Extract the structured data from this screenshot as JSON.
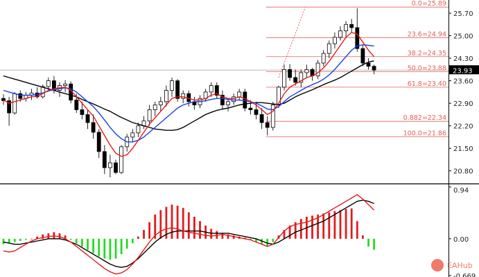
{
  "chart_data": [
    {
      "type": "candlestick",
      "panel": "price",
      "y_ticks": [
        "25.70",
        "25.00",
        "24.30",
        "23.60",
        "22.90",
        "22.20",
        "21.50",
        "20.80"
      ],
      "ylim": [
        20.45,
        25.98
      ],
      "last_price_label": "23.93",
      "last_price": 23.93,
      "colors": {
        "up": "#ffffff",
        "down": "#000000",
        "wick": "#222222",
        "sma_slow": "#000000",
        "ema_fast": "#e41a1a",
        "ema_mid": "#1a3ee4",
        "fib": "#e85c5c"
      },
      "candles": [
        [
          23.05,
          23.18,
          22.85,
          22.98
        ],
        [
          22.98,
          23.1,
          22.2,
          22.6
        ],
        [
          22.6,
          23.25,
          22.55,
          23.2
        ],
        [
          23.2,
          23.3,
          22.95,
          23.05
        ],
        [
          23.05,
          23.25,
          22.95,
          23.15
        ],
        [
          23.15,
          23.35,
          23.0,
          23.22
        ],
        [
          23.22,
          23.4,
          23.05,
          23.1
        ],
        [
          23.1,
          23.48,
          23.05,
          23.42
        ],
        [
          23.42,
          23.7,
          23.3,
          23.6
        ],
        [
          23.6,
          23.75,
          23.2,
          23.3
        ],
        [
          23.3,
          23.55,
          23.1,
          23.45
        ],
        [
          23.45,
          23.62,
          23.25,
          23.5
        ],
        [
          23.5,
          23.58,
          22.9,
          23.0
        ],
        [
          23.0,
          23.2,
          22.6,
          22.7
        ],
        [
          22.7,
          22.95,
          22.4,
          22.55
        ],
        [
          22.55,
          22.7,
          22.1,
          22.3
        ],
        [
          22.3,
          22.55,
          21.8,
          22.0
        ],
        [
          22.0,
          22.1,
          21.2,
          21.4
        ],
        [
          21.4,
          21.6,
          20.7,
          20.9
        ],
        [
          20.9,
          21.3,
          20.6,
          21.05
        ],
        [
          21.05,
          21.15,
          20.7,
          20.75
        ],
        [
          20.75,
          21.6,
          20.7,
          21.55
        ],
        [
          21.55,
          21.95,
          21.4,
          21.85
        ],
        [
          21.85,
          22.1,
          21.7,
          21.98
        ],
        [
          21.98,
          22.3,
          21.85,
          22.2
        ],
        [
          22.2,
          22.5,
          22.1,
          22.35
        ],
        [
          22.35,
          22.85,
          22.2,
          22.7
        ],
        [
          22.7,
          22.95,
          22.5,
          22.85
        ],
        [
          22.85,
          23.1,
          22.65,
          22.95
        ],
        [
          22.95,
          23.45,
          22.8,
          23.3
        ],
        [
          23.3,
          23.7,
          23.1,
          23.6
        ],
        [
          23.6,
          23.65,
          22.95,
          23.05
        ],
        [
          23.05,
          23.3,
          22.9,
          23.2
        ],
        [
          23.2,
          23.3,
          22.8,
          22.95
        ],
        [
          22.95,
          23.1,
          22.7,
          22.85
        ],
        [
          22.85,
          23.15,
          22.75,
          23.05
        ],
        [
          23.05,
          23.35,
          22.95,
          23.25
        ],
        [
          23.25,
          23.55,
          23.1,
          23.45
        ],
        [
          23.45,
          23.55,
          23.05,
          23.15
        ],
        [
          23.15,
          23.3,
          22.7,
          22.85
        ],
        [
          22.85,
          23.05,
          22.65,
          22.95
        ],
        [
          22.95,
          23.2,
          22.85,
          23.1
        ],
        [
          23.1,
          23.35,
          23.0,
          23.25
        ],
        [
          23.25,
          23.35,
          22.65,
          22.75
        ],
        [
          22.75,
          23.0,
          22.55,
          22.7
        ],
        [
          22.7,
          22.95,
          22.4,
          22.55
        ],
        [
          22.55,
          22.75,
          22.1,
          22.3
        ],
        [
          22.3,
          22.5,
          21.9,
          22.15
        ],
        [
          22.15,
          22.95,
          22.05,
          22.85
        ],
        [
          22.85,
          23.45,
          22.75,
          23.4
        ],
        [
          23.4,
          24.1,
          23.3,
          23.95
        ],
        [
          23.95,
          24.12,
          23.6,
          23.7
        ],
        [
          23.7,
          23.95,
          23.45,
          23.55
        ],
        [
          23.55,
          23.95,
          23.4,
          23.85
        ],
        [
          23.85,
          24.1,
          23.7,
          23.95
        ],
        [
          23.95,
          24.0,
          23.6,
          23.75
        ],
        [
          23.75,
          24.25,
          23.65,
          24.15
        ],
        [
          24.15,
          24.55,
          24.05,
          24.45
        ],
        [
          24.45,
          24.85,
          24.3,
          24.75
        ],
        [
          24.75,
          25.1,
          24.6,
          24.95
        ],
        [
          24.95,
          25.3,
          24.85,
          25.15
        ],
        [
          25.15,
          25.45,
          24.95,
          25.35
        ],
        [
          25.35,
          25.52,
          25.1,
          25.25
        ],
        [
          25.25,
          25.85,
          24.5,
          24.6
        ],
        [
          24.6,
          24.7,
          24.05,
          24.15
        ],
        [
          24.15,
          24.3,
          23.95,
          24.05
        ],
        [
          24.05,
          24.1,
          23.8,
          23.93
        ]
      ],
      "indicators": {
        "sma_slow": [
          23.75,
          23.7,
          23.65,
          23.6,
          23.55,
          23.5,
          23.45,
          23.4,
          23.35,
          23.3,
          23.25,
          23.2,
          23.15,
          23.1,
          23.02,
          22.95,
          22.88,
          22.8,
          22.72,
          22.65,
          22.55,
          22.46,
          22.38,
          22.3,
          22.25,
          22.2,
          22.15,
          22.1,
          22.08,
          22.06,
          22.06,
          22.08,
          22.15,
          22.25,
          22.35,
          22.45,
          22.55,
          22.62,
          22.68,
          22.72,
          22.75,
          22.8,
          22.85,
          22.88,
          22.9,
          22.92,
          22.92,
          22.9,
          22.88,
          22.86,
          22.9,
          23.0,
          23.1,
          23.18,
          23.25,
          23.32,
          23.4,
          23.48,
          23.55,
          23.62,
          23.7,
          23.8,
          23.9,
          24.0,
          24.1,
          24.18,
          24.22
        ],
        "ema_fast": [
          23.0,
          22.9,
          22.95,
          23.0,
          23.05,
          23.1,
          23.12,
          23.2,
          23.3,
          23.35,
          23.38,
          23.4,
          23.3,
          23.1,
          22.9,
          22.7,
          22.5,
          22.2,
          21.9,
          21.6,
          21.35,
          21.25,
          21.3,
          21.5,
          21.75,
          22.0,
          22.25,
          22.45,
          22.65,
          22.85,
          23.05,
          23.1,
          23.1,
          23.05,
          23.0,
          23.0,
          23.05,
          23.15,
          23.2,
          23.1,
          23.05,
          23.05,
          23.1,
          23.05,
          22.95,
          22.85,
          22.7,
          22.55,
          22.65,
          22.9,
          23.2,
          23.4,
          23.5,
          23.6,
          23.7,
          23.75,
          23.85,
          24.0,
          24.2,
          24.45,
          24.7,
          24.95,
          25.1,
          25.05,
          24.8,
          24.55,
          24.35
        ],
        "ema_mid": [
          23.3,
          23.25,
          23.2,
          23.15,
          23.15,
          23.15,
          23.18,
          23.22,
          23.28,
          23.32,
          23.35,
          23.38,
          23.35,
          23.25,
          23.1,
          22.95,
          22.8,
          22.6,
          22.38,
          22.15,
          21.95,
          21.8,
          21.7,
          21.7,
          21.75,
          21.85,
          22.0,
          22.15,
          22.3,
          22.45,
          22.6,
          22.75,
          22.85,
          22.9,
          22.95,
          22.95,
          22.98,
          23.02,
          23.05,
          23.05,
          23.02,
          23.0,
          23.0,
          22.98,
          22.95,
          22.9,
          22.82,
          22.72,
          22.7,
          22.8,
          22.95,
          23.1,
          23.2,
          23.3,
          23.4,
          23.48,
          23.55,
          23.65,
          23.78,
          23.95,
          24.15,
          24.35,
          24.55,
          24.68,
          24.72,
          24.7,
          24.68
        ]
      },
      "horizontal_line": 23.93,
      "fib_levels": [
        {
          "label": "0.0=25.89",
          "value": 25.89
        },
        {
          "label": "23.6=24.94",
          "value": 24.94
        },
        {
          "label": "38.2=24.35",
          "value": 24.35
        },
        {
          "label": "50.0=23.88",
          "value": 23.88
        },
        {
          "label": "61.8=23.40",
          "value": 23.4
        },
        {
          "label": "0.882=22.34",
          "value": 22.34
        },
        {
          "label": "100.0=21.86",
          "value": 21.86
        }
      ],
      "fib_trend_line": {
        "from_index": 49,
        "from_value": 23.7,
        "to_index": 56,
        "to_value": 25.89
      }
    },
    {
      "type": "bar",
      "panel": "oscillator",
      "y_ticks": [
        "0.94",
        "0.00",
        "-0.669"
      ],
      "ylim": [
        -0.669,
        0.94
      ],
      "colors": {
        "positive": "#e41a1a",
        "negative": "#22dd22",
        "signal_fast": "#e41a1a",
        "signal_slow": "#000000"
      },
      "histogram": [
        -0.1,
        -0.08,
        -0.06,
        -0.04,
        -0.02,
        0.0,
        0.04,
        0.08,
        0.1,
        0.12,
        0.1,
        0.06,
        -0.02,
        -0.08,
        -0.14,
        -0.2,
        -0.26,
        -0.32,
        -0.36,
        -0.38,
        -0.36,
        -0.28,
        -0.18,
        -0.08,
        0.04,
        0.16,
        0.3,
        0.44,
        0.52,
        0.58,
        0.62,
        0.6,
        0.56,
        0.48,
        0.4,
        0.32,
        0.24,
        0.18,
        0.14,
        0.1,
        0.08,
        0.06,
        0.04,
        0.02,
        -0.02,
        -0.06,
        -0.1,
        -0.14,
        -0.06,
        0.06,
        0.16,
        0.24,
        0.3,
        0.36,
        0.4,
        0.42,
        0.44,
        0.46,
        0.48,
        0.5,
        0.52,
        0.54,
        0.55,
        0.32,
        0.06,
        -0.14,
        -0.2
      ],
      "line_fast": [
        -0.22,
        -0.24,
        -0.22,
        -0.16,
        -0.1,
        -0.04,
        0.0,
        0.02,
        0.04,
        0.05,
        0.04,
        0.0,
        -0.06,
        -0.14,
        -0.22,
        -0.3,
        -0.38,
        -0.46,
        -0.54,
        -0.6,
        -0.64,
        -0.62,
        -0.56,
        -0.46,
        -0.34,
        -0.2,
        -0.06,
        0.06,
        0.14,
        0.18,
        0.2,
        0.18,
        0.14,
        0.12,
        0.1,
        0.08,
        0.06,
        0.05,
        0.06,
        0.08,
        0.06,
        0.04,
        0.02,
        0.0,
        -0.02,
        -0.06,
        -0.1,
        -0.14,
        -0.1,
        0.02,
        0.14,
        0.22,
        0.26,
        0.28,
        0.3,
        0.34,
        0.38,
        0.44,
        0.5,
        0.56,
        0.62,
        0.68,
        0.74,
        0.8,
        0.72,
        0.62,
        0.52
      ],
      "line_slow": [
        -0.06,
        -0.08,
        -0.1,
        -0.1,
        -0.08,
        -0.06,
        -0.04,
        -0.02,
        0.0,
        0.0,
        0.0,
        -0.02,
        -0.06,
        -0.1,
        -0.16,
        -0.22,
        -0.28,
        -0.34,
        -0.4,
        -0.46,
        -0.5,
        -0.52,
        -0.5,
        -0.44,
        -0.36,
        -0.26,
        -0.16,
        -0.06,
        0.02,
        0.08,
        0.12,
        0.14,
        0.14,
        0.14,
        0.14,
        0.14,
        0.12,
        0.1,
        0.1,
        0.1,
        0.1,
        0.08,
        0.06,
        0.04,
        0.02,
        0.0,
        -0.04,
        -0.08,
        -0.1,
        -0.06,
        0.0,
        0.06,
        0.12,
        0.16,
        0.2,
        0.24,
        0.28,
        0.32,
        0.38,
        0.44,
        0.5,
        0.56,
        0.62,
        0.68,
        0.7,
        0.68,
        0.64
      ]
    }
  ],
  "watermark": {
    "text": "EAHub",
    "icon": "piggy-bank-icon"
  }
}
